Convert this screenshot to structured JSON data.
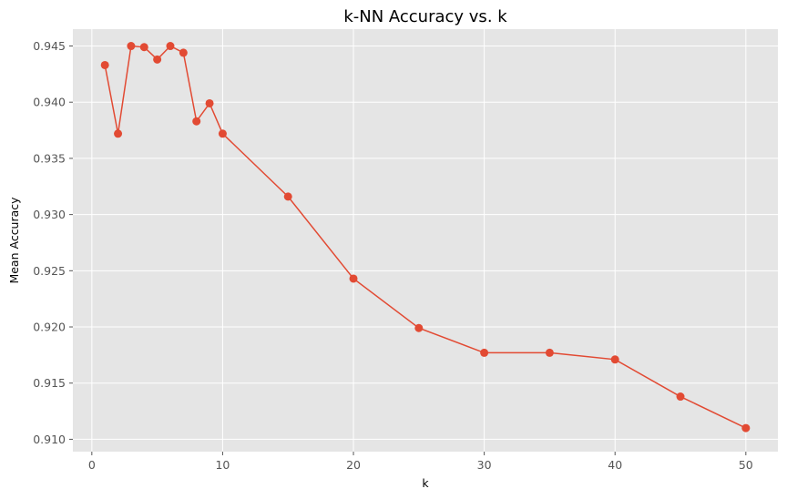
{
  "chart_data": {
    "type": "line",
    "title": "k-NN Accuracy vs. k",
    "xlabel": "k",
    "ylabel": "Mean Accuracy",
    "xlim": [
      -1.45,
      52.45
    ],
    "ylim": [
      0.9089,
      0.9465
    ],
    "xticks": [
      0,
      10,
      20,
      30,
      40,
      50
    ],
    "xtick_labels": [
      "0",
      "10",
      "20",
      "30",
      "40",
      "50"
    ],
    "yticks": [
      0.91,
      0.915,
      0.92,
      0.925,
      0.93,
      0.935,
      0.94,
      0.945
    ],
    "ytick_labels": [
      "0.910",
      "0.915",
      "0.920",
      "0.925",
      "0.930",
      "0.935",
      "0.940",
      "0.945"
    ],
    "grid": true,
    "series": [
      {
        "color": "#E24A33",
        "marker": "circle",
        "x": [
          1,
          2,
          3,
          4,
          5,
          6,
          7,
          8,
          9,
          10,
          15,
          20,
          25,
          30,
          35,
          40,
          45,
          50
        ],
        "y": [
          0.9433,
          0.9372,
          0.945,
          0.9449,
          0.9438,
          0.945,
          0.9444,
          0.9383,
          0.9399,
          0.9372,
          0.9316,
          0.9243,
          0.9199,
          0.9177,
          0.9177,
          0.9171,
          0.9138,
          0.911
        ]
      }
    ]
  }
}
